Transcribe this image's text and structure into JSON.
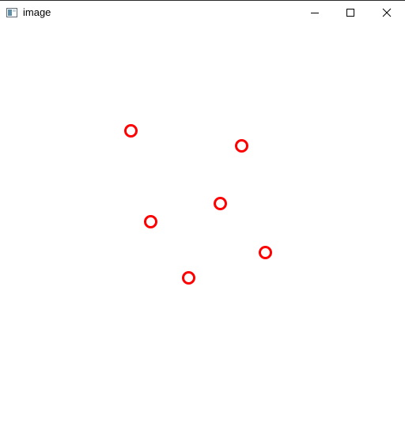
{
  "window": {
    "title": "image",
    "icon": "image-window-icon",
    "controls": {
      "minimize_icon": "minimize-icon",
      "maximize_icon": "maximize-icon",
      "close_icon": "close-icon"
    }
  },
  "canvas": {
    "background_color": "#ffffff",
    "marker_color": "#ff0000",
    "marker_count": 6
  }
}
